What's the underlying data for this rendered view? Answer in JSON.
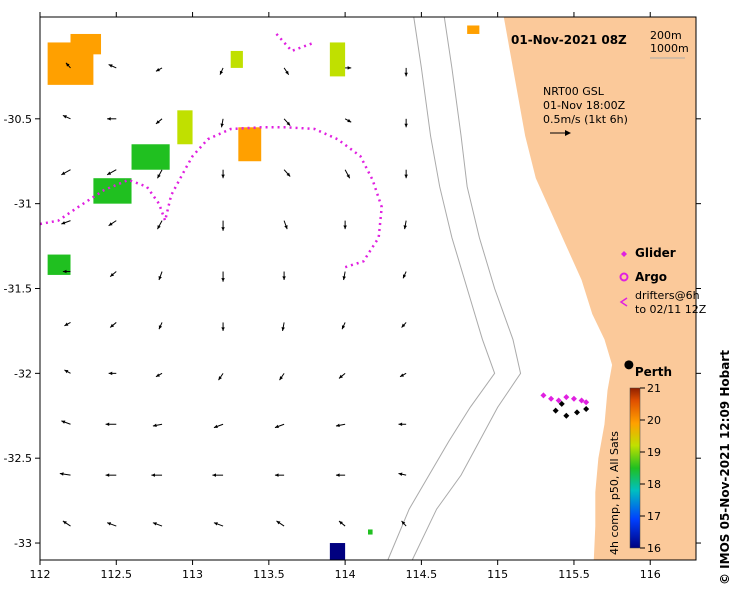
{
  "title": "01-Nov-2021 08Z",
  "depth_legend": [
    "200m",
    "1000m"
  ],
  "current_info": [
    "NRT00 GSL",
    "01-Nov 18:00Z",
    "0.5m/s (1kt 6h)"
  ],
  "city": "Perth",
  "legend": {
    "glider": "Glider",
    "argo": "Argo",
    "drifters_line1": "drifters@6h",
    "drifters_line2": "to 02/11 12Z"
  },
  "colorbar": {
    "label": "4h comp, p50, All Sats",
    "min": 16,
    "max": 21,
    "ticks": [
      "21",
      "20",
      "19",
      "18",
      "17",
      "16"
    ]
  },
  "credit": "© IMOS 05-Nov-2021 12:09 Hobart",
  "colors": {
    "land": "#fbc99a",
    "track": "#e020e0",
    "isobath": "#aaaaaa"
  },
  "chart_data": {
    "type": "map",
    "title": "01-Nov-2021 08Z",
    "xlim": [
      112,
      116.3
    ],
    "ylim": [
      -33.1,
      -29.9
    ],
    "x_ticks": [
      112,
      112.5,
      113,
      113.5,
      114,
      114.5,
      115,
      115.5,
      116
    ],
    "x_tick_labels": [
      "112",
      "112.5",
      "113",
      "113.5",
      "114",
      "114.5",
      "115",
      "115.5",
      "116"
    ],
    "y_ticks": [
      -30.5,
      -31,
      -31.5,
      -32,
      -32.5,
      -33
    ],
    "y_tick_labels": [
      "-30.5",
      "-31",
      "-31.5",
      "-32",
      "-32.5",
      "-33"
    ],
    "city": {
      "name": "Perth",
      "lon": 115.86,
      "lat": -31.95
    },
    "coast": [
      [
        115.04,
        -29.9
      ],
      [
        115.08,
        -30.1
      ],
      [
        115.12,
        -30.3
      ],
      [
        115.18,
        -30.6
      ],
      [
        115.25,
        -30.85
      ],
      [
        115.35,
        -31.05
      ],
      [
        115.45,
        -31.25
      ],
      [
        115.55,
        -31.45
      ],
      [
        115.62,
        -31.65
      ],
      [
        115.7,
        -31.8
      ],
      [
        115.75,
        -31.95
      ],
      [
        115.72,
        -32.1
      ],
      [
        115.7,
        -32.3
      ],
      [
        115.66,
        -32.5
      ],
      [
        115.64,
        -32.7
      ],
      [
        115.64,
        -32.9
      ],
      [
        115.63,
        -33.1
      ]
    ],
    "isobaths": [
      [
        [
          114.65,
          -29.9
        ],
        [
          114.7,
          -30.2
        ],
        [
          114.76,
          -30.6
        ],
        [
          114.8,
          -30.9
        ],
        [
          114.88,
          -31.2
        ],
        [
          114.98,
          -31.5
        ],
        [
          115.1,
          -31.8
        ],
        [
          115.15,
          -32.0
        ],
        [
          115.0,
          -32.2
        ],
        [
          114.88,
          -32.4
        ],
        [
          114.76,
          -32.6
        ],
        [
          114.6,
          -32.8
        ],
        [
          114.44,
          -33.1
        ]
      ],
      [
        [
          114.45,
          -29.9
        ],
        [
          114.5,
          -30.2
        ],
        [
          114.56,
          -30.6
        ],
        [
          114.62,
          -30.9
        ],
        [
          114.7,
          -31.2
        ],
        [
          114.8,
          -31.5
        ],
        [
          114.9,
          -31.8
        ],
        [
          114.98,
          -32.0
        ],
        [
          114.82,
          -32.2
        ],
        [
          114.68,
          -32.4
        ],
        [
          114.55,
          -32.6
        ],
        [
          114.42,
          -32.8
        ],
        [
          114.28,
          -33.1
        ]
      ]
    ],
    "glider_track": [
      [
        112.0,
        -31.12
      ],
      [
        112.12,
        -31.1
      ],
      [
        112.25,
        -31.02
      ],
      [
        112.42,
        -30.92
      ],
      [
        112.58,
        -30.86
      ],
      [
        112.7,
        -30.9
      ],
      [
        112.78,
        -31.0
      ],
      [
        112.82,
        -31.1
      ],
      [
        112.86,
        -30.95
      ],
      [
        112.95,
        -30.8
      ],
      [
        113.0,
        -30.72
      ],
      [
        113.1,
        -30.62
      ],
      [
        113.25,
        -30.56
      ],
      [
        113.45,
        -30.55
      ],
      [
        113.62,
        -30.55
      ],
      [
        113.8,
        -30.56
      ],
      [
        113.95,
        -30.62
      ],
      [
        114.1,
        -30.72
      ],
      [
        114.18,
        -30.86
      ],
      [
        114.24,
        -31.02
      ],
      [
        114.22,
        -31.2
      ],
      [
        114.12,
        -31.34
      ],
      [
        113.98,
        -31.38
      ]
    ],
    "drifter_track": [
      [
        113.55,
        -30.0
      ],
      [
        113.65,
        -30.1
      ],
      [
        113.8,
        -30.05
      ]
    ],
    "drifters": [
      [
        115.3,
        -32.13
      ],
      [
        115.35,
        -32.15
      ],
      [
        115.4,
        -32.16
      ],
      [
        115.45,
        -32.14
      ],
      [
        115.5,
        -32.15
      ],
      [
        115.55,
        -32.16
      ],
      [
        115.58,
        -32.17
      ],
      [
        115.38,
        -32.22
      ],
      [
        115.45,
        -32.25
      ],
      [
        115.52,
        -32.23
      ],
      [
        115.58,
        -32.21
      ],
      [
        115.42,
        -32.18
      ]
    ],
    "sst_patches": [
      {
        "lon": 112.05,
        "lat": -30.05,
        "w": 0.3,
        "h": 0.25,
        "value": 20.3
      },
      {
        "lon": 112.2,
        "lat": -30.0,
        "w": 0.2,
        "h": 0.12,
        "value": 20.0
      },
      {
        "lon": 113.3,
        "lat": -30.55,
        "w": 0.15,
        "h": 0.2,
        "value": 20.8
      },
      {
        "lon": 112.9,
        "lat": -30.45,
        "w": 0.1,
        "h": 0.2,
        "value": 19.5
      },
      {
        "lon": 112.6,
        "lat": -30.65,
        "w": 0.25,
        "h": 0.15,
        "value": 18.4
      },
      {
        "lon": 112.35,
        "lat": -30.85,
        "w": 0.25,
        "h": 0.15,
        "value": 18.8
      },
      {
        "lon": 113.9,
        "lat": -30.05,
        "w": 0.1,
        "h": 0.2,
        "value": 19.6
      },
      {
        "lon": 113.25,
        "lat": -30.1,
        "w": 0.08,
        "h": 0.1,
        "value": 19.3
      },
      {
        "lon": 114.8,
        "lat": -29.95,
        "w": 0.08,
        "h": 0.05,
        "value": 20.2
      },
      {
        "lon": 112.05,
        "lat": -31.3,
        "w": 0.15,
        "h": 0.12,
        "value": 18.1
      },
      {
        "lon": 113.9,
        "lat": -33.0,
        "w": 0.1,
        "h": 0.1,
        "value": 16.1
      },
      {
        "lon": 114.15,
        "lat": -32.92,
        "w": 0.03,
        "h": 0.03,
        "value": 18.0
      }
    ],
    "arrows": [
      [
        112.2,
        -30.2,
        -0.03,
        0.03
      ],
      [
        112.5,
        -30.2,
        -0.05,
        0.02
      ],
      [
        112.8,
        -30.2,
        -0.04,
        -0.02
      ],
      [
        113.2,
        -30.2,
        -0.02,
        -0.04
      ],
      [
        113.6,
        -30.2,
        0.03,
        -0.04
      ],
      [
        114.0,
        -30.2,
        0.04,
        0.0
      ],
      [
        114.4,
        -30.2,
        0.0,
        -0.05
      ],
      [
        112.2,
        -30.5,
        -0.05,
        0.02
      ],
      [
        112.5,
        -30.5,
        -0.06,
        0.0
      ],
      [
        112.8,
        -30.5,
        -0.04,
        -0.03
      ],
      [
        113.2,
        -30.5,
        -0.01,
        -0.05
      ],
      [
        113.6,
        -30.5,
        0.04,
        -0.04
      ],
      [
        114.0,
        -30.5,
        0.04,
        -0.02
      ],
      [
        114.4,
        -30.5,
        0.0,
        -0.05
      ],
      [
        112.2,
        -30.8,
        -0.06,
        -0.03
      ],
      [
        112.5,
        -30.8,
        -0.06,
        -0.03
      ],
      [
        112.8,
        -30.8,
        -0.03,
        -0.05
      ],
      [
        113.2,
        -30.8,
        0.0,
        -0.05
      ],
      [
        113.6,
        -30.8,
        0.04,
        -0.04
      ],
      [
        114.0,
        -30.8,
        0.03,
        -0.05
      ],
      [
        114.4,
        -30.8,
        0.0,
        -0.05
      ],
      [
        112.2,
        -31.1,
        -0.06,
        -0.02
      ],
      [
        112.5,
        -31.1,
        -0.05,
        -0.03
      ],
      [
        112.8,
        -31.1,
        -0.03,
        -0.05
      ],
      [
        113.2,
        -31.1,
        0.0,
        -0.06
      ],
      [
        113.6,
        -31.1,
        0.02,
        -0.05
      ],
      [
        114.0,
        -31.1,
        0.0,
        -0.05
      ],
      [
        114.4,
        -31.1,
        -0.01,
        -0.05
      ],
      [
        112.2,
        -31.4,
        -0.05,
        0.0
      ],
      [
        112.5,
        -31.4,
        -0.04,
        -0.03
      ],
      [
        112.8,
        -31.4,
        -0.02,
        -0.05
      ],
      [
        113.2,
        -31.4,
        0.0,
        -0.06
      ],
      [
        113.6,
        -31.4,
        0.0,
        -0.05
      ],
      [
        114.0,
        -31.4,
        -0.01,
        -0.05
      ],
      [
        114.4,
        -31.4,
        -0.02,
        -0.04
      ],
      [
        112.2,
        -31.7,
        -0.04,
        -0.02
      ],
      [
        112.5,
        -31.7,
        -0.04,
        -0.03
      ],
      [
        112.8,
        -31.7,
        -0.02,
        -0.04
      ],
      [
        113.2,
        -31.7,
        0.0,
        -0.05
      ],
      [
        113.6,
        -31.7,
        -0.01,
        -0.05
      ],
      [
        114.0,
        -31.7,
        -0.02,
        -0.04
      ],
      [
        114.4,
        -31.7,
        -0.03,
        -0.03
      ],
      [
        112.2,
        -32.0,
        -0.04,
        0.02
      ],
      [
        112.5,
        -32.0,
        -0.05,
        0.0
      ],
      [
        112.8,
        -32.0,
        -0.04,
        -0.02
      ],
      [
        113.2,
        -32.0,
        -0.03,
        -0.04
      ],
      [
        113.6,
        -32.0,
        -0.03,
        -0.04
      ],
      [
        114.0,
        -32.0,
        -0.04,
        -0.03
      ],
      [
        114.4,
        -32.0,
        -0.04,
        -0.02
      ],
      [
        112.2,
        -32.3,
        -0.06,
        0.02
      ],
      [
        112.5,
        -32.3,
        -0.07,
        0.0
      ],
      [
        112.8,
        -32.3,
        -0.06,
        -0.01
      ],
      [
        113.2,
        -32.3,
        -0.06,
        -0.02
      ],
      [
        113.6,
        -32.3,
        -0.06,
        -0.02
      ],
      [
        114.0,
        -32.3,
        -0.06,
        -0.01
      ],
      [
        114.4,
        -32.3,
        -0.05,
        0.0
      ],
      [
        112.2,
        -32.6,
        -0.07,
        0.01
      ],
      [
        112.5,
        -32.6,
        -0.07,
        0.0
      ],
      [
        112.8,
        -32.6,
        -0.07,
        0.0
      ],
      [
        113.2,
        -32.6,
        -0.07,
        0.0
      ],
      [
        113.6,
        -32.6,
        -0.06,
        0.0
      ],
      [
        114.0,
        -32.6,
        -0.06,
        0.0
      ],
      [
        114.4,
        -32.6,
        -0.05,
        0.01
      ],
      [
        112.2,
        -32.9,
        -0.05,
        0.03
      ],
      [
        112.5,
        -32.9,
        -0.06,
        0.02
      ],
      [
        112.8,
        -32.9,
        -0.06,
        0.02
      ],
      [
        113.2,
        -32.9,
        -0.06,
        0.02
      ],
      [
        113.6,
        -32.9,
        -0.05,
        0.03
      ],
      [
        114.0,
        -32.9,
        -0.04,
        0.03
      ],
      [
        114.4,
        -32.9,
        -0.03,
        0.03
      ]
    ]
  }
}
